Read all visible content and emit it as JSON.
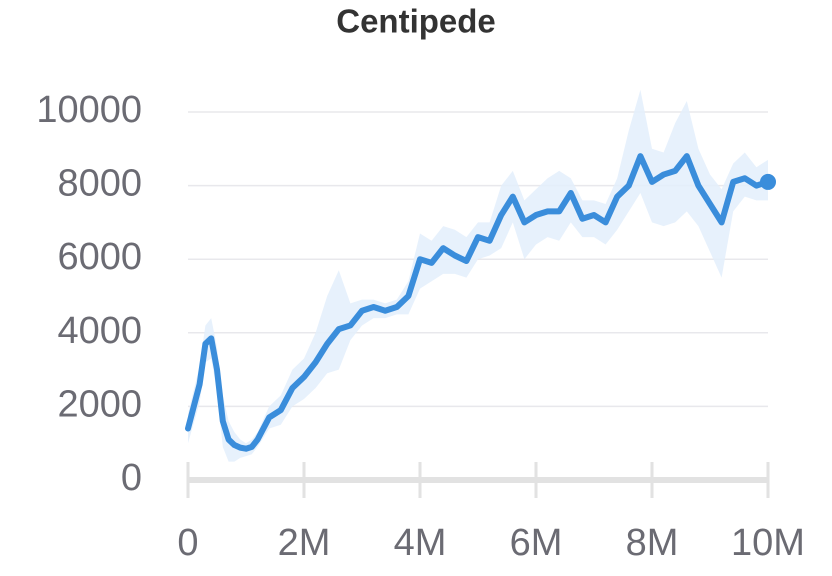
{
  "chart_data": {
    "type": "line",
    "title": "Centipede",
    "x": [
      0,
      200000,
      300000,
      400000,
      500000,
      600000,
      700000,
      800000,
      900000,
      1000000,
      1100000,
      1200000,
      1400000,
      1600000,
      1800000,
      2000000,
      2200000,
      2400000,
      2600000,
      2800000,
      3000000,
      3200000,
      3400000,
      3600000,
      3800000,
      4000000,
      4200000,
      4400000,
      4600000,
      4800000,
      5000000,
      5200000,
      5400000,
      5600000,
      5800000,
      6000000,
      6200000,
      6400000,
      6600000,
      6800000,
      7000000,
      7200000,
      7400000,
      7600000,
      7800000,
      8000000,
      8200000,
      8400000,
      8600000,
      8800000,
      9000000,
      9200000,
      9400000,
      9600000,
      9800000,
      10000000
    ],
    "values": [
      1400,
      2600,
      3700,
      3850,
      3000,
      1600,
      1100,
      950,
      880,
      850,
      900,
      1100,
      1700,
      1900,
      2500,
      2800,
      3200,
      3700,
      4100,
      4200,
      4600,
      4700,
      4600,
      4700,
      5000,
      6000,
      5900,
      6300,
      6100,
      5950,
      6600,
      6500,
      7200,
      7700,
      7000,
      7200,
      7300,
      7300,
      7800,
      7100,
      7200,
      7000,
      7700,
      8000,
      8800,
      8100,
      8300,
      8400,
      8800,
      8000,
      7500,
      7000,
      8100,
      8200,
      8000,
      8100
    ],
    "lower": [
      1000,
      2100,
      3200,
      3300,
      2400,
      900,
      500,
      500,
      600,
      650,
      700,
      900,
      1400,
      1500,
      2000,
      2200,
      2500,
      2900,
      3000,
      3800,
      4200,
      4400,
      4400,
      4500,
      4500,
      5200,
      5400,
      5600,
      5600,
      5500,
      6000,
      6100,
      6300,
      7000,
      6000,
      6400,
      6600,
      6500,
      7000,
      6600,
      6600,
      6400,
      6800,
      7300,
      7800,
      7000,
      6900,
      7000,
      7300,
      6900,
      6200,
      5500,
      7300,
      7700,
      7600,
      7600
    ],
    "upper": [
      1800,
      3100,
      4200,
      4400,
      3600,
      2300,
      1600,
      1300,
      1100,
      1000,
      1100,
      1300,
      2000,
      2300,
      3000,
      3300,
      4000,
      5000,
      5700,
      4800,
      4900,
      4900,
      4800,
      4900,
      5400,
      6700,
      6500,
      6900,
      6800,
      6600,
      7000,
      7000,
      8000,
      8400,
      7600,
      7900,
      8200,
      8400,
      8200,
      7600,
      7600,
      7500,
      8200,
      9500,
      10600,
      9000,
      8900,
      9700,
      10300,
      9000,
      8300,
      7900,
      8600,
      8900,
      8500,
      8700
    ],
    "color": "#3a8ddb",
    "band_color": "#e3eefb",
    "xlim": [
      0,
      10000000
    ],
    "xticks": [
      0,
      {
        "value": 2000000,
        "label": "2M"
      },
      {
        "value": 4000000,
        "label": "4M"
      },
      {
        "value": 6000000,
        "label": "6M"
      },
      {
        "value": 8000000,
        "label": "8M"
      },
      {
        "value": 10000000,
        "label": "10M"
      }
    ],
    "ylim": [
      0,
      10000
    ],
    "yticks": [
      0,
      2000,
      4000,
      6000,
      8000,
      10000
    ],
    "grid": true
  }
}
